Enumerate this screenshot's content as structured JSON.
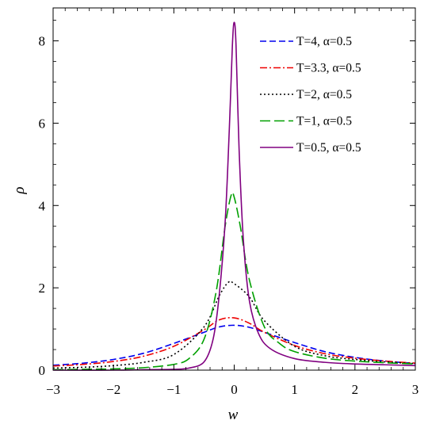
{
  "chart_data": {
    "type": "line",
    "xlabel": "w",
    "ylabel": "ρ",
    "xlim": [
      -3,
      3
    ],
    "ylim": [
      0,
      8.8
    ],
    "x_ticks": [
      "−3",
      "−2",
      "−1",
      "0",
      "1",
      "2",
      "3"
    ],
    "y_ticks": [
      "0",
      "2",
      "4",
      "6",
      "8"
    ],
    "grid": false,
    "legend_position": "top-right",
    "series": [
      {
        "name": "T=4, α=0.5",
        "color": "#0000ee",
        "dash": "dashed",
        "x": [
          -3,
          -2.5,
          -2,
          -1.5,
          -1,
          -0.5,
          -0.25,
          0,
          0.25,
          0.5,
          1,
          1.5,
          2,
          2.5,
          3
        ],
        "y": [
          0.12,
          0.17,
          0.26,
          0.41,
          0.65,
          0.92,
          1.05,
          1.09,
          1.04,
          0.92,
          0.67,
          0.45,
          0.31,
          0.22,
          0.16
        ]
      },
      {
        "name": "T=3.3, α=0.5",
        "color": "#ee0000",
        "dash": "dash-dot",
        "x": [
          -3,
          -2.5,
          -2,
          -1.5,
          -1,
          -0.5,
          -0.25,
          0,
          0.25,
          0.5,
          1,
          1.5,
          2,
          2.5,
          3
        ],
        "y": [
          0.1,
          0.14,
          0.21,
          0.34,
          0.58,
          0.98,
          1.22,
          1.27,
          1.14,
          0.92,
          0.6,
          0.4,
          0.29,
          0.22,
          0.17
        ]
      },
      {
        "name": "T=2, α=0.5",
        "color": "#000000",
        "dash": "dotted",
        "x": [
          -3,
          -2.5,
          -2,
          -1.5,
          -1,
          -0.5,
          -0.25,
          -0.1,
          0,
          0.25,
          0.5,
          1,
          1.5,
          2,
          2.5,
          3
        ],
        "y": [
          0.05,
          0.07,
          0.11,
          0.19,
          0.38,
          1.05,
          1.8,
          2.13,
          2.1,
          1.78,
          1.2,
          0.58,
          0.35,
          0.26,
          0.2,
          0.16
        ]
      },
      {
        "name": "T=1, α=0.5",
        "color": "#00a000",
        "dash": "long-dash",
        "x": [
          -3,
          -2.5,
          -2,
          -1.5,
          -1,
          -0.75,
          -0.5,
          -0.3,
          -0.15,
          -0.05,
          0,
          0.1,
          0.25,
          0.5,
          0.75,
          1,
          1.5,
          2,
          2.5,
          3
        ],
        "y": [
          0.01,
          0.02,
          0.03,
          0.06,
          0.14,
          0.28,
          0.75,
          1.9,
          3.5,
          4.25,
          4.2,
          3.5,
          2.2,
          1.05,
          0.65,
          0.45,
          0.29,
          0.22,
          0.18,
          0.15
        ]
      },
      {
        "name": "T=0.5, α=0.5",
        "color": "#800080",
        "dash": "solid",
        "x": [
          -3,
          -2,
          -1.5,
          -1,
          -0.75,
          -0.5,
          -0.35,
          -0.25,
          -0.15,
          -0.08,
          -0.03,
          0,
          0.03,
          0.08,
          0.15,
          0.25,
          0.4,
          0.6,
          1,
          1.5,
          2,
          2.5,
          3
        ],
        "y": [
          0,
          0,
          0.01,
          0.02,
          0.05,
          0.2,
          0.75,
          1.8,
          3.6,
          5.9,
          7.9,
          8.45,
          7.9,
          5.4,
          3.2,
          1.7,
          0.9,
          0.52,
          0.28,
          0.19,
          0.15,
          0.13,
          0.11
        ]
      }
    ]
  }
}
